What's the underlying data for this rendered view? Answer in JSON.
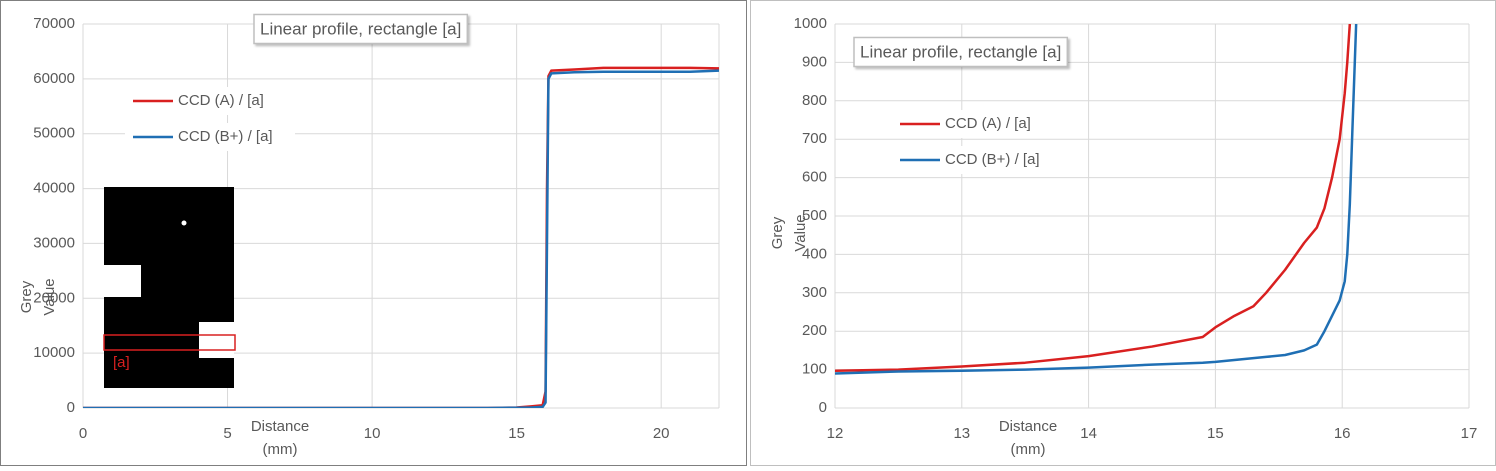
{
  "chart_data": [
    {
      "type": "line",
      "annotation": "Linear profile, rectangle [a]",
      "x_label": "Distance (mm)",
      "y_label": "Grey Value",
      "x": [
        0,
        5,
        10,
        14,
        15,
        15.5,
        15.9,
        16.0,
        16.05,
        16.1,
        16.2,
        17,
        18,
        19,
        20,
        21,
        22
      ],
      "series": [
        {
          "name": "CCD (A) / [a]",
          "color": "#d92020",
          "values": [
            0,
            0,
            0,
            0,
            100,
            300,
            500,
            3000,
            40000,
            60500,
            61500,
            61700,
            62000,
            62000,
            62000,
            62000,
            61900
          ]
        },
        {
          "name": "CCD (B+) / [a]",
          "color": "#1f6fb4",
          "values": [
            0,
            0,
            0,
            0,
            50,
            100,
            200,
            1000,
            30000,
            60000,
            61000,
            61200,
            61300,
            61300,
            61300,
            61300,
            61500
          ]
        }
      ],
      "xlim": [
        0,
        22
      ],
      "xticks": [
        0,
        5,
        10,
        15,
        20
      ],
      "ylim": [
        0,
        70000
      ],
      "yticks": [
        0,
        10000,
        20000,
        30000,
        40000,
        50000,
        60000,
        70000
      ],
      "grid": true,
      "inset_label": "[a]"
    },
    {
      "type": "line",
      "annotation": "Linear profile, rectangle [a]",
      "x_label": "Distance (mm)",
      "y_label": "Grey Value",
      "x": [
        12,
        12.5,
        13,
        13.5,
        14,
        14.5,
        14.9,
        15,
        15.15,
        15.3,
        15.4,
        15.55,
        15.7,
        15.8,
        15.86,
        15.92,
        15.98,
        16.02,
        16.04,
        16.06,
        16.08,
        16.11
      ],
      "series": [
        {
          "name": "CCD (A) / [a]",
          "color": "#d92020",
          "values": [
            97,
            100,
            108,
            118,
            135,
            160,
            185,
            210,
            240,
            265,
            300,
            360,
            430,
            470,
            520,
            600,
            700,
            820,
            900,
            1000,
            null,
            null
          ]
        },
        {
          "name": "CCD (B+) / [a]",
          "color": "#1f6fb4",
          "values": [
            90,
            95,
            97,
            100,
            105,
            113,
            118,
            120,
            125,
            130,
            133,
            138,
            150,
            165,
            200,
            240,
            280,
            330,
            400,
            530,
            720,
            1000
          ]
        }
      ],
      "xlim": [
        12,
        17
      ],
      "xticks": [
        12,
        13,
        14,
        15,
        16,
        17
      ],
      "ylim": [
        0,
        1000
      ],
      "yticks": [
        0,
        100,
        200,
        300,
        400,
        500,
        600,
        700,
        800,
        900,
        1000
      ],
      "grid": true
    }
  ]
}
